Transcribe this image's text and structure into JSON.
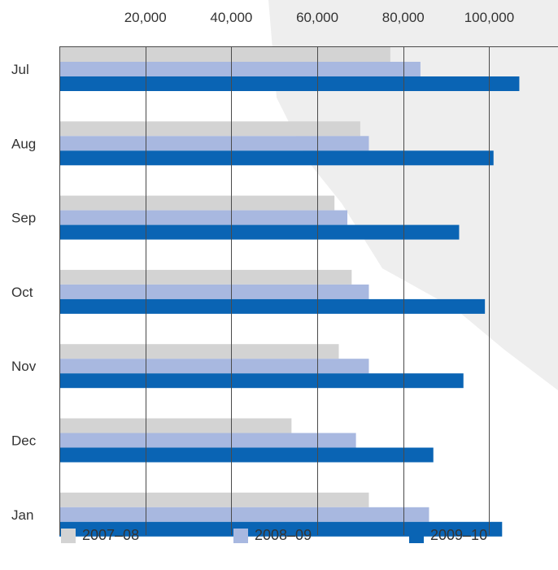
{
  "chart_data": {
    "type": "bar",
    "orientation": "horizontal",
    "title": "",
    "xlabel": "",
    "ylabel": "",
    "xlim": [
      0,
      116000
    ],
    "x_ticks": [
      20000,
      40000,
      60000,
      80000,
      100000
    ],
    "x_tick_labels": [
      "20,000",
      "40,000",
      "60,000",
      "80,000",
      "100,000"
    ],
    "x_axis_position": "top",
    "grid": true,
    "legend_position": "bottom",
    "categories": [
      "Jul",
      "Aug",
      "Sep",
      "Oct",
      "Nov",
      "Dec",
      "Jan"
    ],
    "series": [
      {
        "name": "2007–08",
        "color": "#d3d3d3",
        "values": [
          77000,
          70000,
          64000,
          68000,
          65000,
          54000,
          72000
        ]
      },
      {
        "name": "2008–09",
        "color": "#a8b8e0",
        "values": [
          84000,
          72000,
          67000,
          72000,
          72000,
          69000,
          86000
        ]
      },
      {
        "name": "2009–10",
        "color": "#0a64b4",
        "values": [
          107000,
          101000,
          93000,
          99000,
          94000,
          87000,
          103000
        ]
      }
    ]
  },
  "colors": {
    "gridline": "#4a4a4a",
    "plot_border": "#4a4a4a",
    "label_text": "#333333",
    "background_watermark": "#eeeeee"
  }
}
